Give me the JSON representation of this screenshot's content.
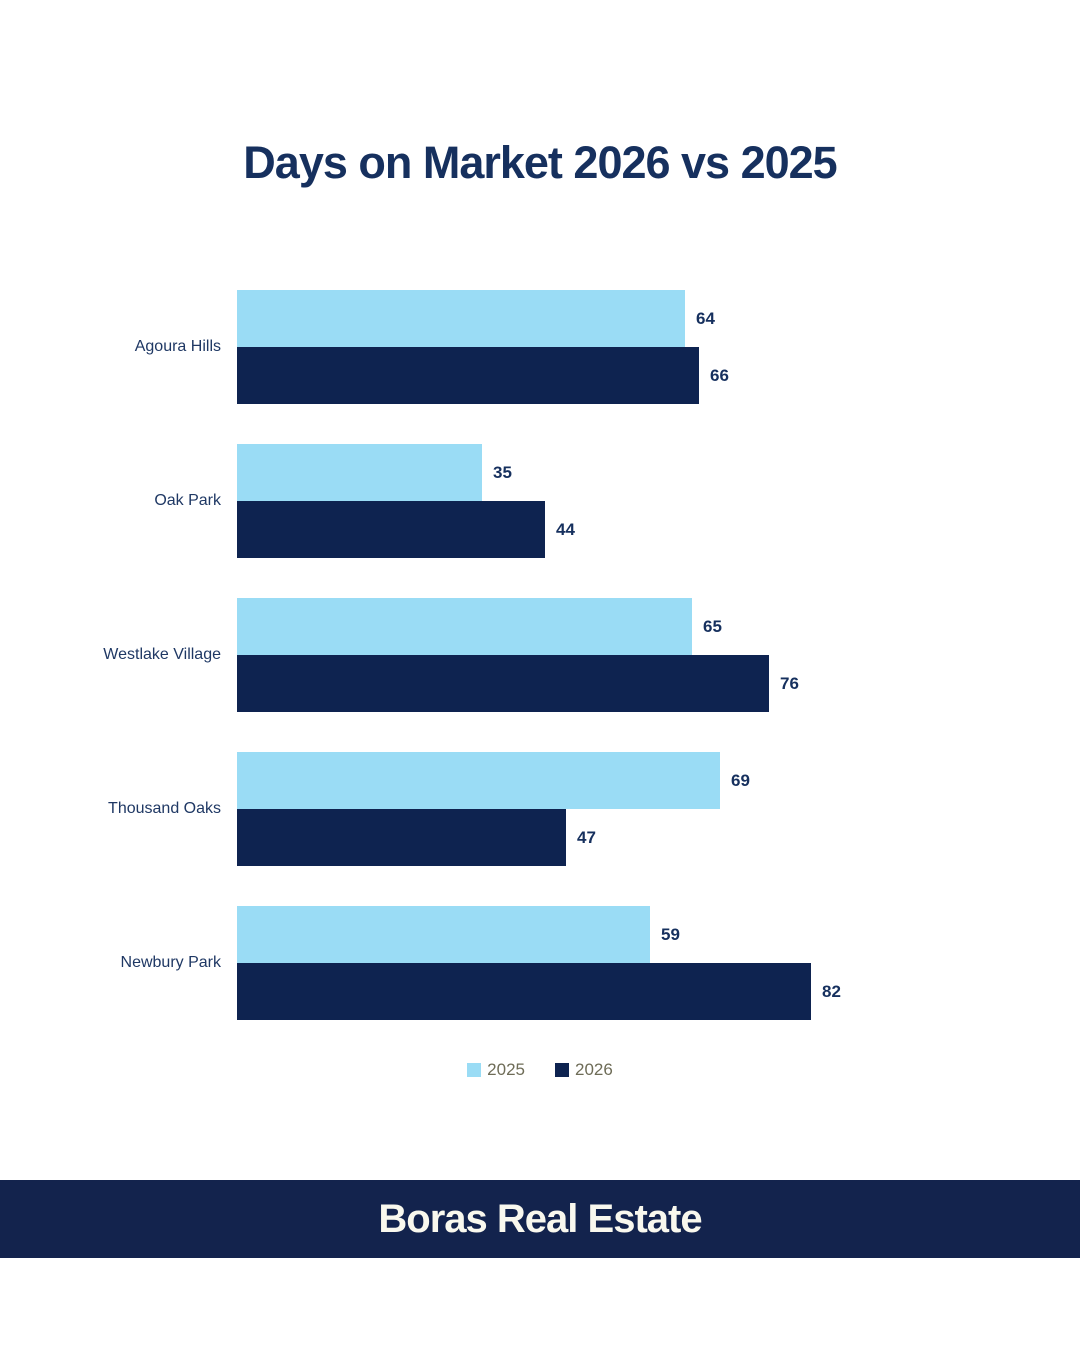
{
  "chart_data": {
    "type": "bar",
    "orientation": "horizontal",
    "title": "Days on Market 2026 vs 2025",
    "categories": [
      "Agoura Hills",
      "Oak Park",
      "Westlake Village",
      "Thousand Oaks",
      "Newbury Park"
    ],
    "series": [
      {
        "name": "2025",
        "color": "#9adcf5",
        "values": [
          64,
          35,
          65,
          69,
          59
        ]
      },
      {
        "name": "2026",
        "color": "#0e2350",
        "values": [
          66,
          44,
          76,
          47,
          82
        ]
      }
    ],
    "value_labels": true,
    "legend_position": "bottom",
    "grid": false,
    "xlim": [
      0,
      100
    ]
  },
  "colors": {
    "series_2025": "#9adcf5",
    "series_2026": "#0e2350",
    "title_text": "#16305e",
    "category_text": "#1f3864",
    "value_text": "#16305e",
    "legend_text": "#6e6c57",
    "footer_background": "#13234d",
    "footer_text": "#f9f8ee"
  },
  "footer": {
    "brand": "Boras Real Estate"
  }
}
